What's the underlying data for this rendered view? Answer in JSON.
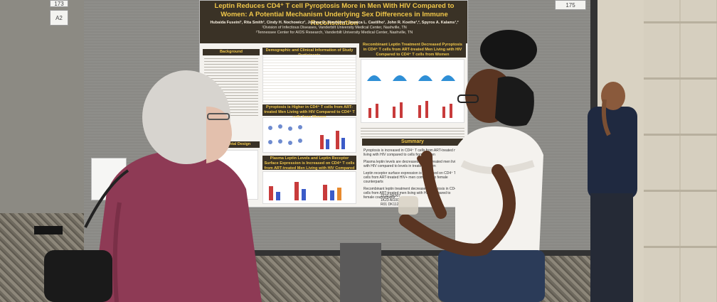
{
  "poster": {
    "title": "Leptin Reduces CD4⁺ T cell Pyroptosis More in Men With HIV Compared to Women: A Potential Mechanism Underlying Sex Differences in Immune Reconstitution",
    "authors": "Hubaida Fuseini¹, Rita Smith¹, Cindy H. Nochowicz¹, Joshua D. Simmons¹, Jessica L. Castilho¹, John R. Koethe¹,², Spyros A. Kalams¹,²",
    "affiliation_1": "¹Division of Infectious Diseases, Vanderbilt University Medical Center, Nashville, TN",
    "affiliation_2": "²Tennessee Center for AIDS Research, Vanderbilt University Medical Center, Nashville, TN",
    "sections": {
      "background": "Background",
      "demographics": "Demographic and Clinical Information of Study Participants",
      "recombinant": "Recombinant Leptin Treatment Decreased Pyroptosis in CD4⁺ T cells from ART-treated Men Living with HIV Compared to CD4⁺ T cells from Women",
      "pyroptosis": "Pyroptosis is Higher in CD4⁺ T cells from ART-treated Men Living with HIV Compared to CD4⁺ T cells from Women",
      "design": "Experimental Design",
      "plasma": "Plasma Leptin Levels and Leptin Receptor Surface Expression is Increased on CD4⁺ T cells from ART-treated Men Living with HIV Compared to CD4⁺ T cells from Women",
      "summary": "Summary"
    },
    "summary_items": [
      "Pyroptosis is increased in CD4⁺ T cells from ART-treated men living with HIV compared to cells from women",
      "Plasma leptin levels are decreased in ART-treated men living with HIV compared to levels in treated women",
      "Leptin receptor surface expression is increased on CD4⁺ T cells from ART-treated HIV+ men compared to female counterparts",
      "Recombinant leptin treatment decreased pyroptosis in CD4⁺ T cells from ART-treated men living with HIV compared to female counterparts"
    ],
    "grant_codes": [
      "2T32 DK007",
      "1K23 AI100",
      "R01 DK112"
    ]
  },
  "board_tags": {
    "left_top": "173",
    "left_number": "A2",
    "right_top": "175"
  },
  "colors": {
    "poster_header": "#3a3226",
    "poster_title": "#f0c649",
    "sweater": "#8e3a55",
    "board": "#8a8985"
  }
}
